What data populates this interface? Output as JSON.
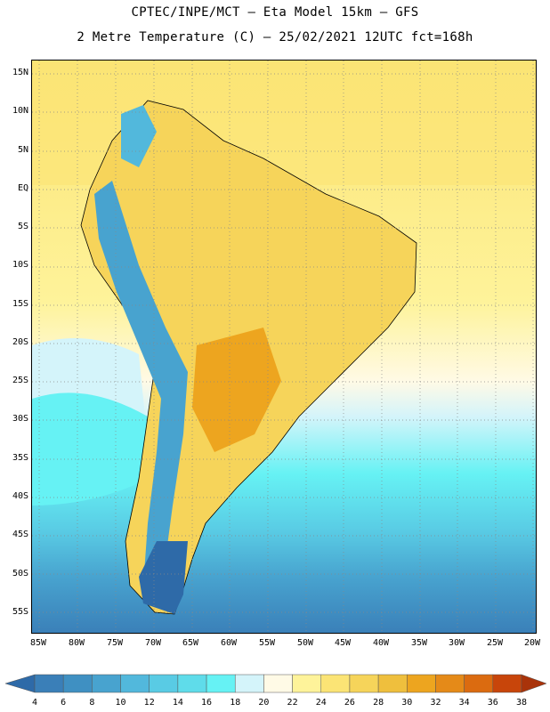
{
  "header": {
    "line1": "CPTEC/INPE/MCT – Eta Model 15km – GFS",
    "line2": "2 Metre Temperature (C) – 25/02/2021 12UTC fct=168h"
  },
  "map": {
    "lat_labels": [
      "15N",
      "10N",
      "5N",
      "EQ",
      "5S",
      "10S",
      "15S",
      "20S",
      "25S",
      "30S",
      "35S",
      "40S",
      "45S",
      "50S",
      "55S"
    ],
    "lon_labels": [
      "85W",
      "80W",
      "75W",
      "70W",
      "65W",
      "60W",
      "55W",
      "50W",
      "45W",
      "40W",
      "35W",
      "30W",
      "25W",
      "20W"
    ],
    "grid": "dotted"
  },
  "colorbar": {
    "labels": [
      "4",
      "6",
      "8",
      "10",
      "12",
      "14",
      "16",
      "18",
      "20",
      "22",
      "24",
      "26",
      "28",
      "30",
      "32",
      "34",
      "36",
      "38"
    ],
    "colors": [
      "#2e6aa8",
      "#3a7fb8",
      "#3f90c2",
      "#48a3cf",
      "#52b8dc",
      "#59cbe4",
      "#5fdcea",
      "#66f2f4",
      "#d4f4fa",
      "#fffae6",
      "#fef39a",
      "#fbe475",
      "#f6d45a",
      "#efbf3d",
      "#eda51f",
      "#e58a18",
      "#db6b10",
      "#c8450a",
      "#a9330a"
    ]
  }
}
